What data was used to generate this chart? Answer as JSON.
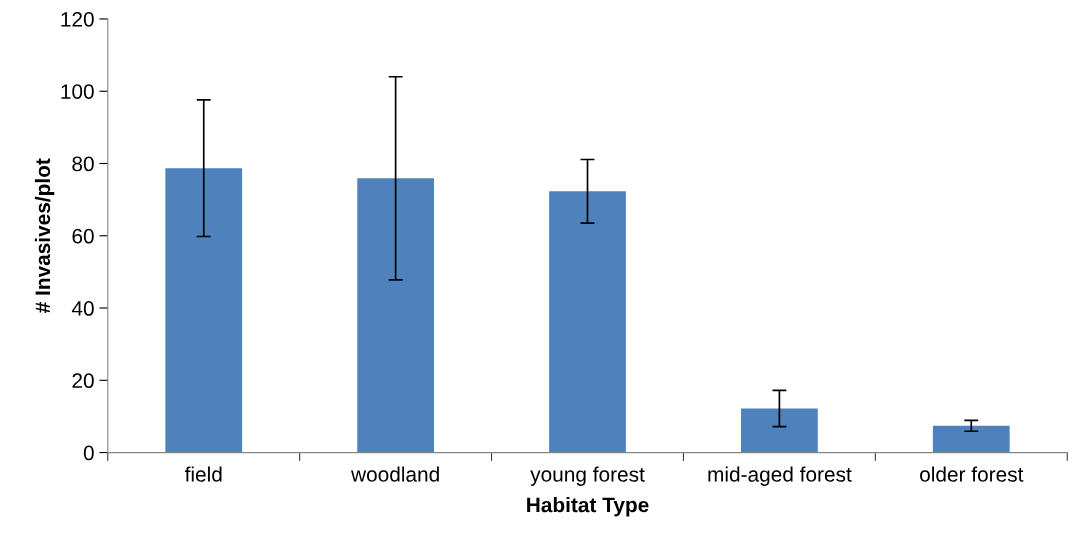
{
  "chart_data": {
    "type": "bar",
    "xlabel": "Habitat Type",
    "ylabel": "# Invasives/plot",
    "categories": [
      "field",
      "woodland",
      "young forest",
      "mid-aged forest",
      "older forest"
    ],
    "values": [
      78.7,
      75.9,
      72.3,
      12.2,
      7.4
    ],
    "errors": [
      18.9,
      28.1,
      8.8,
      5,
      1.5
    ],
    "color": "#4f81bd",
    "ylim": [
      0,
      120
    ],
    "yticks": [
      0,
      20,
      40,
      60,
      80,
      100,
      120
    ],
    "grid": false
  }
}
